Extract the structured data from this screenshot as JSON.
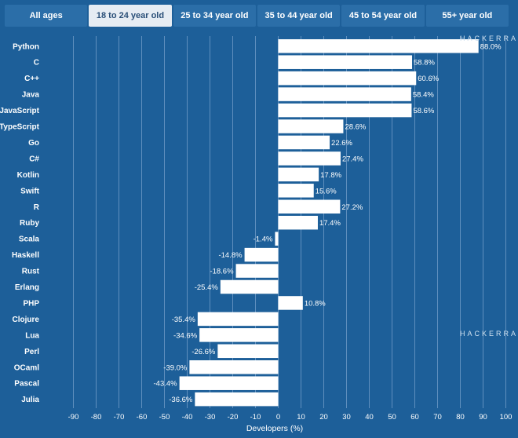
{
  "tabs": [
    {
      "label": "All ages",
      "active": false
    },
    {
      "label": "18 to 24 year old",
      "active": true
    },
    {
      "label": "25 to 34 year old",
      "active": false
    },
    {
      "label": "35 to 44 year old",
      "active": false
    },
    {
      "label": "45 to 54 year old",
      "active": false
    },
    {
      "label": "55+ year old",
      "active": false
    }
  ],
  "watermark": {
    "top": "HACKERRA",
    "middle": "HACKERRA"
  },
  "colors": {
    "background": "#1d5f99",
    "bar": "#ffffff",
    "grid": "#5f8fbe"
  },
  "chart_data": {
    "type": "bar",
    "orientation": "horizontal",
    "title": "",
    "xlabel": "Developers (%)",
    "ylabel": "",
    "xlim": [
      -100,
      100
    ],
    "ticks": [
      -90,
      -80,
      -70,
      -60,
      -50,
      -40,
      -30,
      -20,
      -10,
      0,
      10,
      20,
      30,
      40,
      50,
      60,
      70,
      80,
      90,
      100
    ],
    "grid": true,
    "categories": [
      "Python",
      "C",
      "C++",
      "Java",
      "JavaScript",
      "TypeScript",
      "Go",
      "C#",
      "Kotlin",
      "Swift",
      "R",
      "Ruby",
      "Scala",
      "Haskell",
      "Rust",
      "Erlang",
      "PHP",
      "Clojure",
      "Lua",
      "Perl",
      "OCaml",
      "Pascal",
      "Julia"
    ],
    "values": [
      88.0,
      58.8,
      60.6,
      58.4,
      58.6,
      28.6,
      22.6,
      27.4,
      17.8,
      15.6,
      27.2,
      17.4,
      -1.4,
      -14.8,
      -18.6,
      -25.4,
      10.8,
      -35.4,
      -34.6,
      -26.6,
      -39.0,
      -43.4,
      -36.6
    ],
    "value_labels": [
      "88.0%",
      "58.8%",
      "60.6%",
      "58.4%",
      "58.6%",
      "28.6%",
      "22.6%",
      "27.4%",
      "17.8%",
      "15.6%",
      "27.2%",
      "17.4%",
      "-1.4%",
      "-14.8%",
      "-18.6%",
      "-25.4%",
      "10.8%",
      "-35.4%",
      "-34.6%",
      "-26.6%",
      "-39.0%",
      "-43.4%",
      "-36.6%"
    ]
  }
}
